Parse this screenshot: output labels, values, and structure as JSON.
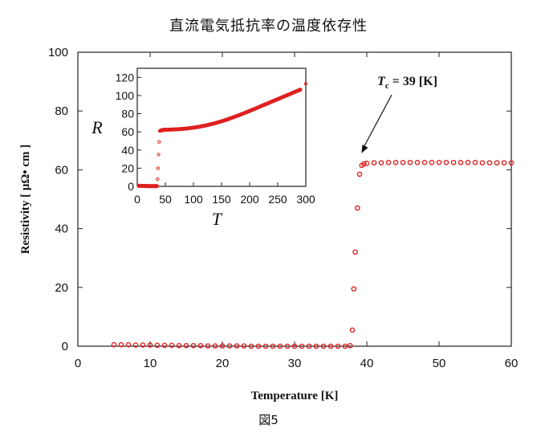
{
  "title": "直流電気抵抗率の温度依存性",
  "caption": "図5",
  "chart_data": [
    {
      "type": "scatter",
      "xlabel": "Temperature [K]",
      "ylabel": "Resistivity [ μΩ• cm ]",
      "xlim": [
        0,
        60
      ],
      "ylim": [
        0,
        100
      ],
      "xticks": [
        "0",
        "10",
        "20",
        "30",
        "40",
        "50",
        "60"
      ],
      "yticks": [
        "0",
        "20",
        "40",
        "60",
        "80",
        "100"
      ],
      "annotation": {
        "text": "T",
        "sub": "c",
        "rest": " = 39 [K]",
        "point": [
          39.6,
          64
        ]
      },
      "marker_color": "#e02020",
      "series": [
        {
          "x": [
            5,
            6,
            7,
            8,
            9,
            10,
            11,
            12,
            13,
            14,
            15,
            16,
            17,
            18,
            19,
            20,
            21,
            22,
            23,
            24,
            25,
            26,
            27,
            28,
            29,
            30,
            31,
            32,
            33,
            34,
            35,
            36,
            37,
            37.7,
            38.0,
            38.2,
            38.4,
            38.7,
            39.0,
            39.3,
            39.6,
            40,
            41,
            42,
            43,
            44,
            45,
            46,
            47,
            48,
            49,
            50,
            51,
            52,
            53,
            54,
            55,
            56,
            57,
            58,
            59,
            60
          ],
          "y": [
            0.5,
            0.5,
            0.5,
            0.4,
            0.4,
            0.4,
            0.3,
            0.3,
            0.3,
            0.2,
            0.2,
            0.2,
            0.2,
            0.1,
            0.1,
            0.1,
            0.1,
            0.1,
            0.1,
            0.0,
            0.0,
            0.0,
            0.0,
            0.0,
            0.0,
            0.0,
            0.0,
            0.0,
            0.0,
            0.0,
            0.0,
            0.0,
            0.0,
            0.2,
            5.5,
            19.5,
            32,
            47,
            58.5,
            61.5,
            62,
            62.2,
            62.4,
            62.4,
            62.5,
            62.5,
            62.5,
            62.5,
            62.5,
            62.5,
            62.5,
            62.5,
            62.5,
            62.5,
            62.5,
            62.5,
            62.5,
            62.4,
            62.4,
            62.4,
            62.4,
            62.4
          ]
        }
      ]
    },
    {
      "type": "scatter",
      "xlabel": "T",
      "ylabel": "R",
      "xlim": [
        0,
        300
      ],
      "ylim": [
        0,
        130
      ],
      "xticks": [
        "0",
        "50",
        "100",
        "150",
        "200",
        "250",
        "300"
      ],
      "yticks": [
        "0",
        "20",
        "40",
        "60",
        "80",
        "100",
        "120"
      ],
      "marker_color": "#e02020",
      "series": [
        {
          "x": [
            3,
            8,
            14,
            20,
            26,
            32,
            35,
            36,
            37,
            38,
            39,
            40,
            45,
            50,
            60,
            70,
            80,
            90,
            100,
            110,
            120,
            130,
            140,
            150,
            160,
            170,
            180,
            190,
            200,
            210,
            220,
            230,
            240,
            250,
            260,
            270,
            280,
            290,
            300
          ],
          "y": [
            0.5,
            0.5,
            0.4,
            0.3,
            0.2,
            0.2,
            0.2,
            8,
            20,
            35,
            49,
            61,
            62,
            62.3,
            62.5,
            62.8,
            63.2,
            63.8,
            64.6,
            65.6,
            66.8,
            68.2,
            69.8,
            71.6,
            73.6,
            75.8,
            78.1,
            80.5,
            83,
            85.6,
            88.2,
            90.8,
            93.4,
            96,
            98.6,
            101.2,
            103.8,
            106.4,
            113
          ]
        }
      ]
    }
  ]
}
